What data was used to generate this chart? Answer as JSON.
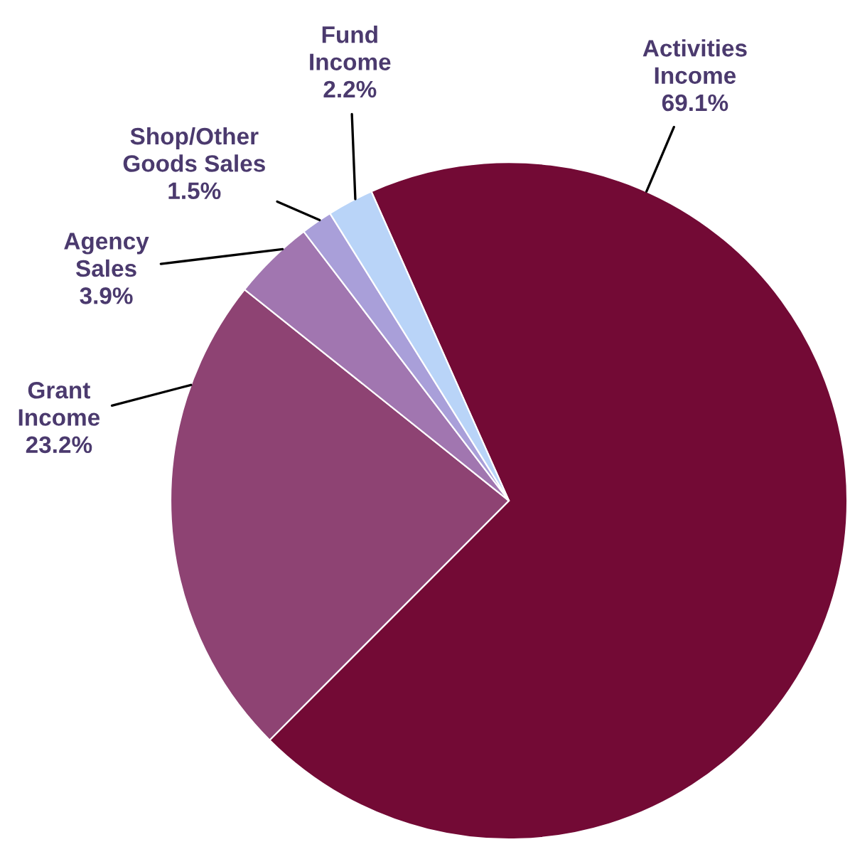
{
  "chart_data": {
    "type": "pie",
    "categories": [
      "Activities Income",
      "Grant Income",
      "Agency Sales",
      "Shop/Other Goods Sales",
      "Fund Income"
    ],
    "values": [
      69.1,
      23.2,
      3.9,
      1.5,
      2.2
    ],
    "value_labels": [
      "69.1%",
      "23.2%",
      "3.9%",
      "1.5%",
      "2.2%"
    ],
    "colors": [
      "#730a35",
      "#8e4373",
      "#a176b0",
      "#a99fd9",
      "#b9d4f8"
    ]
  }
}
